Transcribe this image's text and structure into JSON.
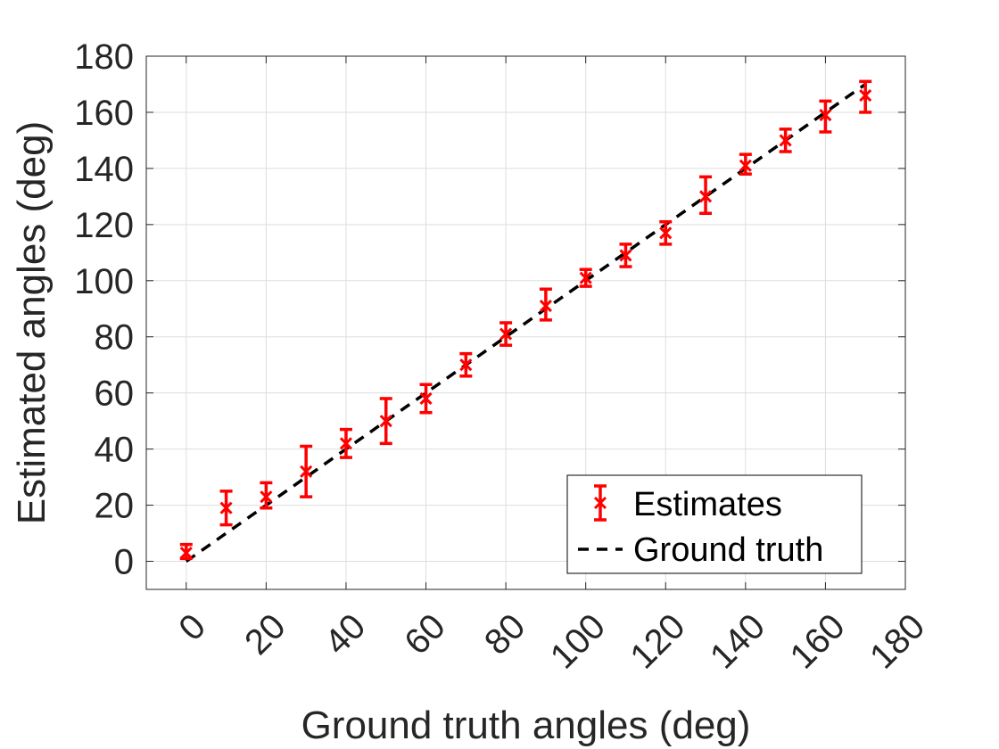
{
  "chart_data": {
    "type": "scatter",
    "title": "",
    "xlabel": "Ground truth angles (deg)",
    "ylabel": "Estimated angles (deg)",
    "xlim": [
      -10,
      180
    ],
    "ylim": [
      -10,
      180
    ],
    "xticks": [
      0,
      20,
      40,
      60,
      80,
      100,
      120,
      140,
      160,
      180
    ],
    "yticks": [
      0,
      20,
      40,
      60,
      80,
      100,
      120,
      140,
      160,
      180
    ],
    "grid": true,
    "legend_position": "bottom-right",
    "series": [
      {
        "name": "Estimates",
        "style": "errorbar",
        "marker": "x",
        "color": "#ff0000",
        "points": [
          {
            "x": 0,
            "y": 3,
            "low": 1,
            "high": 6
          },
          {
            "x": 10,
            "y": 19,
            "low": 13,
            "high": 25
          },
          {
            "x": 20,
            "y": 23,
            "low": 19,
            "high": 28
          },
          {
            "x": 30,
            "y": 32,
            "low": 23,
            "high": 41
          },
          {
            "x": 40,
            "y": 42,
            "low": 37,
            "high": 47
          },
          {
            "x": 50,
            "y": 50,
            "low": 42,
            "high": 58
          },
          {
            "x": 60,
            "y": 58,
            "low": 53,
            "high": 63
          },
          {
            "x": 70,
            "y": 70,
            "low": 66,
            "high": 74
          },
          {
            "x": 80,
            "y": 81,
            "low": 77,
            "high": 85
          },
          {
            "x": 90,
            "y": 91,
            "low": 86,
            "high": 97
          },
          {
            "x": 100,
            "y": 101,
            "low": 98,
            "high": 104
          },
          {
            "x": 110,
            "y": 109,
            "low": 105,
            "high": 113
          },
          {
            "x": 120,
            "y": 117,
            "low": 113,
            "high": 121
          },
          {
            "x": 130,
            "y": 130,
            "low": 124,
            "high": 137
          },
          {
            "x": 140,
            "y": 141,
            "low": 138,
            "high": 145
          },
          {
            "x": 150,
            "y": 150,
            "low": 146,
            "high": 154
          },
          {
            "x": 160,
            "y": 159,
            "low": 153,
            "high": 164
          },
          {
            "x": 170,
            "y": 166,
            "low": 160,
            "high": 171
          }
        ]
      },
      {
        "name": "Ground truth",
        "style": "dashed-line",
        "color": "#000000",
        "x": [
          0,
          170
        ],
        "y": [
          0,
          170
        ]
      }
    ]
  }
}
